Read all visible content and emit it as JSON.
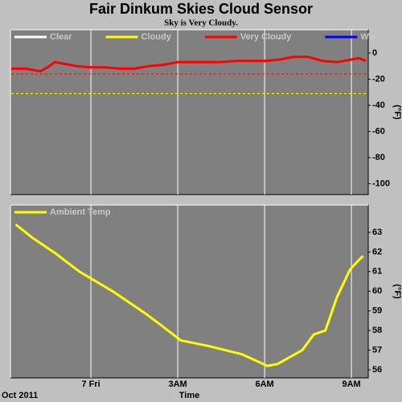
{
  "chart_data": [
    {
      "type": "line",
      "title": "Fair Dinkum Skies Cloud Sensor",
      "subtitle": "Sky is Very Cloudy.",
      "ylabel": "(°F)",
      "legend": "upper left",
      "x": [
        -2.75,
        -2.25,
        -1.75,
        -1.5,
        -1.25,
        -1,
        -0.5,
        0,
        0.5,
        1,
        1.5,
        2,
        2.5,
        3,
        3.5,
        4,
        4.5,
        5,
        5.5,
        6,
        6.5,
        7,
        7.5,
        8,
        8.5,
        9,
        9.25,
        9.5
      ],
      "series": [
        {
          "name": "Clear",
          "color": "#ffffff",
          "values": [
            null,
            null,
            null,
            null,
            null,
            null,
            null,
            null,
            null,
            null,
            null,
            null,
            null,
            null,
            null,
            null,
            null,
            null,
            null,
            null,
            null,
            null,
            null,
            null,
            null,
            null,
            null,
            null
          ]
        },
        {
          "name": "Cloudy",
          "color": "#ffff00",
          "values": [
            null,
            null,
            null,
            null,
            null,
            null,
            null,
            null,
            null,
            null,
            null,
            null,
            null,
            null,
            null,
            null,
            null,
            null,
            null,
            null,
            null,
            null,
            null,
            null,
            null,
            null,
            null,
            null
          ]
        },
        {
          "name": "Very Cloudy",
          "color": "#ff0000",
          "values": [
            -12,
            -12,
            -14,
            -11,
            -7,
            -8,
            -10,
            -11,
            -11,
            -12,
            -12,
            -10,
            -9,
            -7,
            -7,
            -7,
            -7,
            -6,
            -6,
            -6,
            -5,
            -3,
            -3,
            -6,
            -7,
            -5,
            -4,
            -6
          ]
        },
        {
          "name": "Wet",
          "color": "#0000ff",
          "values": [
            null,
            null,
            null,
            null,
            null,
            null,
            null,
            null,
            null,
            null,
            null,
            null,
            null,
            null,
            null,
            null,
            null,
            null,
            null,
            null,
            null,
            null,
            null,
            null,
            null,
            null,
            null,
            null
          ]
        }
      ],
      "reference_lines": [
        {
          "value": -16,
          "color": "#ff0000"
        },
        {
          "value": -31,
          "color": "#ffff00"
        }
      ],
      "xlim": [
        -2.78,
        9.58
      ],
      "xticks": [
        0,
        3,
        6,
        9
      ],
      "xtick_labels": false,
      "ylim": [
        -108.3,
        17.8
      ],
      "yticks": [
        0,
        -20,
        -40,
        -60,
        -80,
        -100
      ]
    },
    {
      "type": "line",
      "xlabel": "Time",
      "x_corner_label": "Oct 2011",
      "ylabel": "(°F)",
      "legend": "upper left",
      "x": [
        -2.6,
        -2.0,
        -1.2,
        -0.4,
        0.75,
        1.85,
        2.4,
        3.1,
        4.1,
        5.2,
        6.1,
        6.45,
        7.3,
        7.7,
        8.1,
        8.5,
        8.95,
        9.2,
        9.4
      ],
      "series": [
        {
          "name": "Ambient Temp",
          "color": "#ffff00",
          "values": [
            63.4,
            62.7,
            61.9,
            61.0,
            60.0,
            58.9,
            58.3,
            57.5,
            57.2,
            56.8,
            56.2,
            56.3,
            57.0,
            57.8,
            58.0,
            59.7,
            61.1,
            61.5,
            61.8
          ]
        }
      ],
      "xlim": [
        -2.78,
        9.58
      ],
      "xticks": [
        {
          "value": 0,
          "label": "7 Fri"
        },
        {
          "value": 3,
          "label": "3AM"
        },
        {
          "value": 6,
          "label": "6AM"
        },
        {
          "value": 9,
          "label": "9AM"
        }
      ],
      "ylim": [
        55.59,
        64.39
      ],
      "yticks": [
        56,
        57,
        58,
        59,
        60,
        61,
        62,
        63
      ]
    }
  ]
}
